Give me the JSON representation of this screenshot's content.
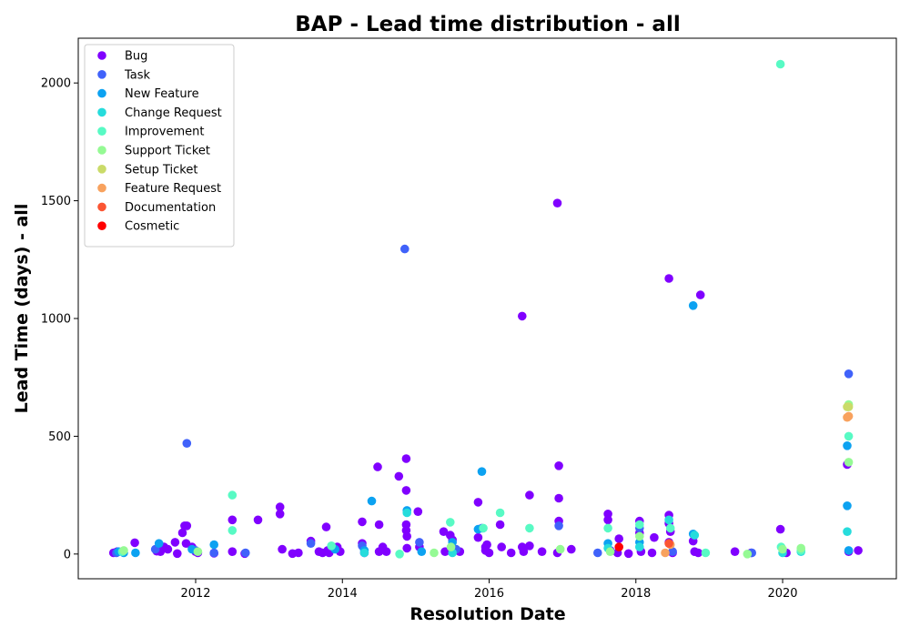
{
  "chart_data": {
    "type": "scatter",
    "title": "BAP - Lead time distribution - all",
    "xlabel": "Resolution Date",
    "ylabel": "Lead Time (days) - all",
    "xlim": [
      2010.4,
      2021.55
    ],
    "ylim": [
      -105,
      2190
    ],
    "xticks": [
      2012,
      2014,
      2016,
      2018,
      2020
    ],
    "xtick_labels": [
      "2012",
      "2014",
      "2016",
      "2018",
      "2020"
    ],
    "yticks": [
      0,
      500,
      1000,
      1500,
      2000
    ],
    "ytick_labels": [
      "0",
      "500",
      "1000",
      "1500",
      "2000"
    ],
    "grid": false,
    "legend_position": "top-left",
    "series": [
      {
        "name": "Bug",
        "color": "#8000ff",
        "points": [
          [
            2010.88,
            5
          ],
          [
            2010.93,
            10
          ],
          [
            2011.17,
            48
          ],
          [
            2011.47,
            12
          ],
          [
            2011.52,
            10
          ],
          [
            2011.57,
            30
          ],
          [
            2011.62,
            20
          ],
          [
            2011.72,
            50
          ],
          [
            2011.75,
            2
          ],
          [
            2011.82,
            90
          ],
          [
            2011.85,
            120
          ],
          [
            2011.88,
            120
          ],
          [
            2011.87,
            45
          ],
          [
            2011.95,
            30
          ],
          [
            2012.0,
            10
          ],
          [
            2012.03,
            5
          ],
          [
            2012.25,
            3
          ],
          [
            2012.5,
            145
          ],
          [
            2012.5,
            10
          ],
          [
            2012.67,
            2
          ],
          [
            2012.85,
            145
          ],
          [
            2013.15,
            200
          ],
          [
            2013.15,
            170
          ],
          [
            2013.18,
            20
          ],
          [
            2013.32,
            2
          ],
          [
            2013.4,
            5
          ],
          [
            2013.57,
            55
          ],
          [
            2013.68,
            10
          ],
          [
            2013.73,
            5
          ],
          [
            2013.78,
            115
          ],
          [
            2013.8,
            15
          ],
          [
            2013.82,
            5
          ],
          [
            2013.93,
            30
          ],
          [
            2013.97,
            10
          ],
          [
            2014.27,
            137
          ],
          [
            2014.27,
            45
          ],
          [
            2014.3,
            5
          ],
          [
            2014.48,
            370
          ],
          [
            2014.5,
            125
          ],
          [
            2014.5,
            10
          ],
          [
            2014.55,
            30
          ],
          [
            2014.6,
            10
          ],
          [
            2014.77,
            330
          ],
          [
            2014.87,
            405
          ],
          [
            2014.87,
            270
          ],
          [
            2014.87,
            125
          ],
          [
            2014.87,
            100
          ],
          [
            2014.88,
            75
          ],
          [
            2014.88,
            25
          ],
          [
            2015.03,
            180
          ],
          [
            2015.05,
            30
          ],
          [
            2015.38,
            95
          ],
          [
            2015.4,
            10
          ],
          [
            2015.47,
            80
          ],
          [
            2015.5,
            60
          ],
          [
            2015.6,
            10
          ],
          [
            2015.85,
            220
          ],
          [
            2015.85,
            70
          ],
          [
            2015.95,
            30
          ],
          [
            2015.95,
            15
          ],
          [
            2015.97,
            40
          ],
          [
            2016.0,
            5
          ],
          [
            2016.15,
            125
          ],
          [
            2016.17,
            30
          ],
          [
            2016.3,
            5
          ],
          [
            2016.45,
            1010
          ],
          [
            2016.45,
            30
          ],
          [
            2016.47,
            10
          ],
          [
            2016.55,
            250
          ],
          [
            2016.55,
            35
          ],
          [
            2016.72,
            10
          ],
          [
            2016.93,
            1490
          ],
          [
            2016.95,
            375
          ],
          [
            2016.95,
            237
          ],
          [
            2016.95,
            140
          ],
          [
            2016.93,
            5
          ],
          [
            2017.12,
            20
          ],
          [
            2017.62,
            170
          ],
          [
            2017.62,
            145
          ],
          [
            2017.65,
            15
          ],
          [
            2017.75,
            5
          ],
          [
            2017.77,
            65
          ],
          [
            2017.9,
            2
          ],
          [
            2018.05,
            140
          ],
          [
            2018.05,
            90
          ],
          [
            2018.07,
            10
          ],
          [
            2018.25,
            70
          ],
          [
            2018.22,
            5
          ],
          [
            2018.45,
            1170
          ],
          [
            2018.45,
            165
          ],
          [
            2018.45,
            130
          ],
          [
            2018.47,
            95
          ],
          [
            2018.45,
            50
          ],
          [
            2018.5,
            5
          ],
          [
            2018.78,
            55
          ],
          [
            2018.8,
            10
          ],
          [
            2018.85,
            5
          ],
          [
            2018.88,
            1100
          ],
          [
            2019.35,
            10
          ],
          [
            2019.57,
            5
          ],
          [
            2019.97,
            105
          ],
          [
            2020.05,
            5
          ],
          [
            2020.88,
            380
          ],
          [
            2020.9,
            10
          ],
          [
            2021.03,
            15
          ]
        ]
      },
      {
        "name": "Task",
        "color": "#4062fa",
        "points": [
          [
            2010.92,
            5
          ],
          [
            2011.45,
            20
          ],
          [
            2011.88,
            470
          ],
          [
            2012.0,
            15
          ],
          [
            2012.25,
            5
          ],
          [
            2012.68,
            5
          ],
          [
            2013.57,
            45
          ],
          [
            2014.27,
            35
          ],
          [
            2014.85,
            1295
          ],
          [
            2015.05,
            50
          ],
          [
            2015.55,
            20
          ],
          [
            2015.9,
            110
          ],
          [
            2016.95,
            120
          ],
          [
            2017.48,
            5
          ],
          [
            2018.05,
            110
          ],
          [
            2018.5,
            10
          ],
          [
            2019.58,
            5
          ],
          [
            2020.9,
            765
          ]
        ]
      },
      {
        "name": "New Feature",
        "color": "#0ca2f1",
        "points": [
          [
            2010.95,
            10
          ],
          [
            2011.02,
            5
          ],
          [
            2011.18,
            5
          ],
          [
            2011.5,
            45
          ],
          [
            2011.95,
            20
          ],
          [
            2012.25,
            40
          ],
          [
            2013.9,
            20
          ],
          [
            2014.3,
            15
          ],
          [
            2014.4,
            225
          ],
          [
            2014.88,
            185
          ],
          [
            2015.08,
            10
          ],
          [
            2015.5,
            50
          ],
          [
            2015.85,
            105
          ],
          [
            2015.9,
            350
          ],
          [
            2017.62,
            45
          ],
          [
            2018.05,
            50
          ],
          [
            2018.78,
            85
          ],
          [
            2018.78,
            1055
          ],
          [
            2020.88,
            460
          ],
          [
            2020.88,
            205
          ],
          [
            2020.9,
            15
          ]
        ]
      },
      {
        "name": "Change Request",
        "color": "#26dcdc",
        "points": [
          [
            2014.3,
            5
          ],
          [
            2014.88,
            175
          ],
          [
            2015.5,
            5
          ],
          [
            2017.62,
            25
          ],
          [
            2018.05,
            30
          ],
          [
            2018.45,
            145
          ],
          [
            2018.8,
            80
          ],
          [
            2020.0,
            5
          ],
          [
            2020.25,
            10
          ],
          [
            2020.88,
            95
          ]
        ]
      },
      {
        "name": "Improvement",
        "color": "#58fac4",
        "points": [
          [
            2011.0,
            10
          ],
          [
            2012.5,
            250
          ],
          [
            2012.5,
            100
          ],
          [
            2013.85,
            35
          ],
          [
            2014.78,
            0
          ],
          [
            2015.47,
            135
          ],
          [
            2015.92,
            110
          ],
          [
            2016.15,
            175
          ],
          [
            2016.55,
            110
          ],
          [
            2017.62,
            110
          ],
          [
            2018.05,
            125
          ],
          [
            2018.47,
            110
          ],
          [
            2018.95,
            5
          ],
          [
            2019.97,
            2080
          ],
          [
            2019.98,
            30
          ],
          [
            2020.25,
            15
          ],
          [
            2020.9,
            500
          ]
        ]
      },
      {
        "name": "Support Ticket",
        "color": "#95fa94",
        "points": [
          [
            2011.02,
            15
          ],
          [
            2012.03,
            10
          ],
          [
            2015.25,
            5
          ],
          [
            2015.48,
            30
          ],
          [
            2016.97,
            20
          ],
          [
            2017.65,
            10
          ],
          [
            2018.05,
            75
          ],
          [
            2019.52,
            0
          ],
          [
            2020.0,
            20
          ],
          [
            2020.25,
            25
          ],
          [
            2020.9,
            635
          ],
          [
            2020.9,
            390
          ]
        ]
      },
      {
        "name": "Setup Ticket",
        "color": "#cadb69",
        "points": [
          [
            2020.9,
            625
          ],
          [
            2020.88,
            625
          ]
        ]
      },
      {
        "name": "Feature Request",
        "color": "#f8a25e",
        "points": [
          [
            2018.4,
            5
          ],
          [
            2018.47,
            40
          ],
          [
            2020.9,
            585
          ],
          [
            2020.88,
            580
          ]
        ]
      },
      {
        "name": "Documentation",
        "color": "#fb5533",
        "points": [
          [
            2018.45,
            45
          ]
        ]
      },
      {
        "name": "Cosmetic",
        "color": "#ff0000",
        "points": [
          [
            2017.77,
            30
          ]
        ]
      }
    ]
  }
}
